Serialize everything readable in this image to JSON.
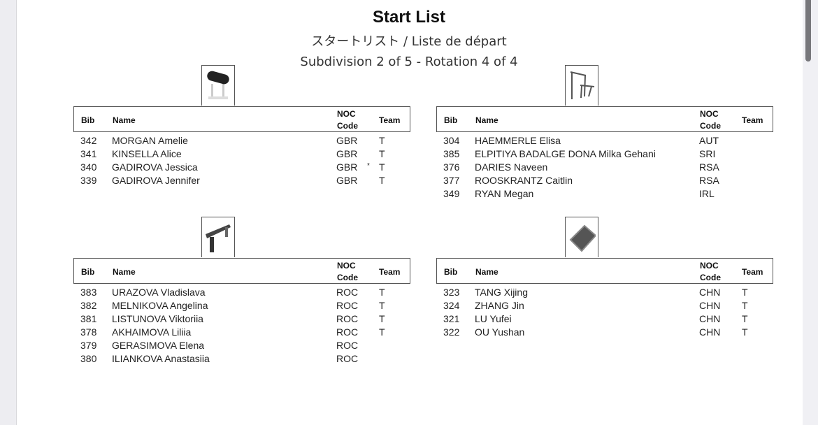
{
  "header": {
    "title": "Start List",
    "subtitle_jp_fr": "スタートリスト / Liste de départ",
    "subdivision": "Subdivision 2 of 5 - Rotation 4 of 4"
  },
  "columns": {
    "bib": "Bib",
    "name": "Name",
    "noc_line1": "NOC",
    "noc_line2": "Code",
    "team": "Team"
  },
  "apparatus": [
    {
      "icon": "vault-icon",
      "rows": [
        {
          "bib": "342",
          "name": "MORGAN Amelie",
          "noc": "GBR",
          "mark": "",
          "team": "T"
        },
        {
          "bib": "341",
          "name": "KINSELLA Alice",
          "noc": "GBR",
          "mark": "",
          "team": "T"
        },
        {
          "bib": "340",
          "name": "GADIROVA Jessica",
          "noc": "GBR",
          "mark": "*",
          "team": "T"
        },
        {
          "bib": "339",
          "name": "GADIROVA Jennifer",
          "noc": "GBR",
          "mark": "",
          "team": "T"
        }
      ]
    },
    {
      "icon": "uneven-bars-icon",
      "rows": [
        {
          "bib": "304",
          "name": "HAEMMERLE Elisa",
          "noc": "AUT",
          "mark": "",
          "team": ""
        },
        {
          "bib": "385",
          "name": "ELPITIYA BADALGE DONA Milka Gehani",
          "noc": "SRI",
          "mark": "",
          "team": ""
        },
        {
          "bib": "376",
          "name": "DARIES Naveen",
          "noc": "RSA",
          "mark": "",
          "team": ""
        },
        {
          "bib": "377",
          "name": "ROOSKRANTZ Caitlin",
          "noc": "RSA",
          "mark": "",
          "team": ""
        },
        {
          "bib": "349",
          "name": "RYAN Megan",
          "noc": "IRL",
          "mark": "",
          "team": ""
        }
      ]
    },
    {
      "icon": "balance-beam-icon",
      "rows": [
        {
          "bib": "383",
          "name": "URAZOVA Vladislava",
          "noc": "ROC",
          "mark": "",
          "team": "T"
        },
        {
          "bib": "382",
          "name": "MELNIKOVA Angelina",
          "noc": "ROC",
          "mark": "",
          "team": "T"
        },
        {
          "bib": "381",
          "name": "LISTUNOVA Viktoriia",
          "noc": "ROC",
          "mark": "",
          "team": "T"
        },
        {
          "bib": "378",
          "name": "AKHAIMOVA Liliia",
          "noc": "ROC",
          "mark": "",
          "team": "T"
        },
        {
          "bib": "379",
          "name": "GERASIMOVA Elena",
          "noc": "ROC",
          "mark": "",
          "team": ""
        },
        {
          "bib": "380",
          "name": "ILIANKOVA Anastasiia",
          "noc": "ROC",
          "mark": "",
          "team": ""
        }
      ]
    },
    {
      "icon": "floor-exercise-icon",
      "rows": [
        {
          "bib": "323",
          "name": "TANG Xijing",
          "noc": "CHN",
          "mark": "",
          "team": "T"
        },
        {
          "bib": "324",
          "name": "ZHANG Jin",
          "noc": "CHN",
          "mark": "",
          "team": "T"
        },
        {
          "bib": "321",
          "name": "LU Yufei",
          "noc": "CHN",
          "mark": "",
          "team": "T"
        },
        {
          "bib": "322",
          "name": "OU Yushan",
          "noc": "CHN",
          "mark": "",
          "team": "T"
        }
      ]
    }
  ]
}
